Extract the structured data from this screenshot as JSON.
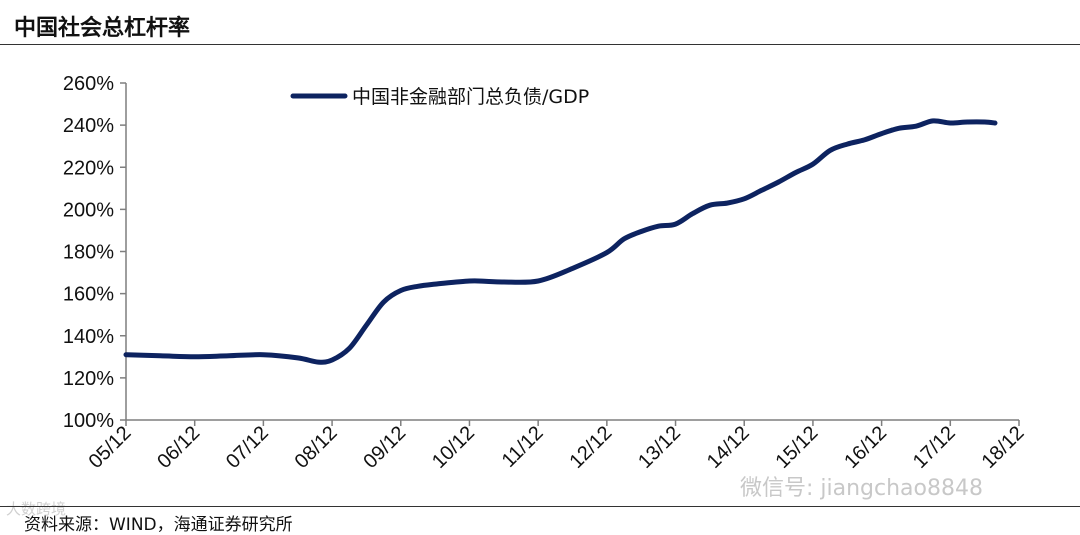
{
  "header": {
    "title": "中国社会总杠杆率"
  },
  "footer": {
    "source": "资料来源：WIND，海通证券研究所"
  },
  "watermarks": {
    "wechat": "微信号: jiangchao8848",
    "brand": "大数跨境"
  },
  "colors": {
    "series": "#0d2360",
    "axis": "#7f7f7f",
    "text": "#111111"
  },
  "chart_data": {
    "type": "line",
    "title": "中国社会总杠杆率",
    "xlabel": "",
    "ylabel": "",
    "ylim": [
      100,
      260
    ],
    "y_ticks": [
      "100%",
      "120%",
      "140%",
      "160%",
      "180%",
      "200%",
      "220%",
      "240%",
      "260%"
    ],
    "y_tick_values": [
      100,
      120,
      140,
      160,
      180,
      200,
      220,
      240,
      260
    ],
    "x_ticks": [
      "05/12",
      "06/12",
      "07/12",
      "08/12",
      "09/12",
      "10/12",
      "11/12",
      "12/12",
      "13/12",
      "14/12",
      "15/12",
      "16/12",
      "17/12",
      "18/12"
    ],
    "x_range": [
      0,
      13
    ],
    "grid": false,
    "legend_position": "top",
    "series": [
      {
        "name": "中国非金融部门总负债/GDP",
        "color": "#0d2360",
        "x": [
          0,
          0.5,
          1,
          1.5,
          2,
          2.5,
          2.8,
          3,
          3.25,
          3.5,
          3.75,
          4,
          4.25,
          4.5,
          5,
          5.25,
          5.5,
          6,
          6.5,
          7,
          7.25,
          7.5,
          7.75,
          8,
          8.25,
          8.5,
          8.75,
          9,
          9.25,
          9.5,
          9.75,
          10,
          10.25,
          10.5,
          10.75,
          11,
          11.25,
          11.5,
          11.75,
          12,
          12.25,
          12.5,
          12.65
        ],
        "y": [
          131,
          130.5,
          130,
          130.5,
          131,
          129.5,
          127.5,
          128.5,
          134,
          145,
          156,
          161.5,
          163.5,
          164.5,
          166,
          165.8,
          165.5,
          166,
          172,
          179.5,
          186,
          189.5,
          192,
          193,
          198,
          202,
          203,
          205,
          209,
          213,
          217.5,
          221.5,
          228,
          231,
          233,
          236,
          238.5,
          239.5,
          242,
          241,
          241.5,
          241.5,
          241
        ]
      }
    ]
  }
}
